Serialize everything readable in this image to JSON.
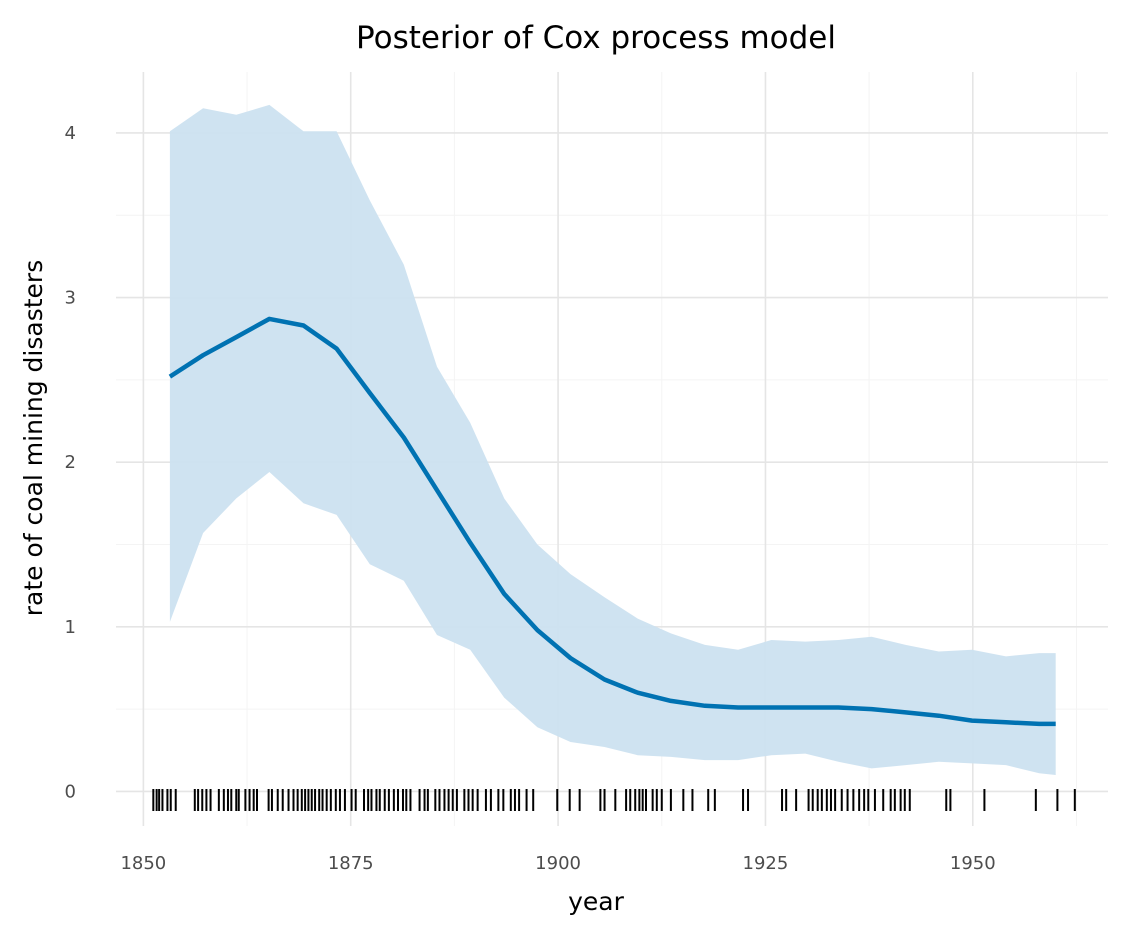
{
  "chart_data": {
    "type": "line",
    "title": "Posterior of Cox process model",
    "xlabel": "year",
    "ylabel": "rate of coal mining disasters",
    "xlim": [
      1846.7,
      1966.3
    ],
    "ylim": [
      -0.21,
      4.37
    ],
    "x_ticks": [
      "1850",
      "1875",
      "1900",
      "1925",
      "1950"
    ],
    "x_tick_values": [
      1850,
      1875,
      1900,
      1925,
      1950
    ],
    "y_ticks": [
      "0",
      "1",
      "2",
      "3",
      "4"
    ],
    "y_tick_values": [
      0,
      1,
      2,
      3,
      4
    ],
    "grid": true,
    "legend": "none",
    "colors": {
      "line": "#0072b2",
      "band": "#cce2f0",
      "rug": "#000000",
      "grid": "#e5e5e5",
      "grid_minor": "#f4f4f4"
    },
    "series": [
      {
        "x": [
          1853.2,
          1857.2,
          1861.2,
          1865.2,
          1869.3,
          1873.3,
          1877.3,
          1881.4,
          1885.4,
          1889.4,
          1893.5,
          1897.5,
          1901.5,
          1905.6,
          1909.6,
          1913.6,
          1917.7,
          1921.7,
          1925.7,
          1929.8,
          1933.8,
          1937.8,
          1941.9,
          1945.9,
          1949.9,
          1954.0,
          1958.0,
          1960.0
        ],
        "values": [
          2.52,
          2.65,
          2.76,
          2.87,
          2.83,
          2.69,
          2.42,
          2.15,
          1.83,
          1.51,
          1.2,
          0.98,
          0.81,
          0.68,
          0.6,
          0.55,
          0.52,
          0.51,
          0.51,
          0.51,
          0.51,
          0.5,
          0.48,
          0.46,
          0.43,
          0.42,
          0.41,
          0.41
        ],
        "lower": [
          1.03,
          1.57,
          1.78,
          1.94,
          1.75,
          1.68,
          1.38,
          1.28,
          0.95,
          0.86,
          0.57,
          0.39,
          0.3,
          0.27,
          0.22,
          0.21,
          0.19,
          0.19,
          0.22,
          0.23,
          0.18,
          0.14,
          0.16,
          0.18,
          0.17,
          0.16,
          0.11,
          0.1
        ],
        "upper": [
          4.01,
          4.15,
          4.11,
          4.17,
          4.01,
          4.01,
          3.59,
          3.2,
          2.58,
          2.24,
          1.78,
          1.5,
          1.32,
          1.18,
          1.05,
          0.96,
          0.89,
          0.86,
          0.92,
          0.91,
          0.92,
          0.94,
          0.89,
          0.85,
          0.86,
          0.82,
          0.84,
          0.84
        ]
      }
    ],
    "rug": [
      1851.2,
      1851.6,
      1851.9,
      1852.3,
      1852.9,
      1853.3,
      1853.9,
      1856.2,
      1856.6,
      1857.1,
      1857.6,
      1858.1,
      1859.1,
      1859.7,
      1860.2,
      1860.6,
      1861.2,
      1861.5,
      1862.3,
      1862.8,
      1863.3,
      1863.7,
      1865.1,
      1865.5,
      1866.2,
      1866.8,
      1867.5,
      1868.1,
      1868.6,
      1869.1,
      1869.5,
      1869.9,
      1870.3,
      1870.7,
      1871.2,
      1871.6,
      1872.1,
      1872.6,
      1873.2,
      1873.7,
      1874.3,
      1875.1,
      1875.6,
      1876.6,
      1877.1,
      1877.5,
      1878.1,
      1878.5,
      1879.1,
      1879.6,
      1880.2,
      1880.7,
      1881.3,
      1881.7,
      1882.2,
      1883.3,
      1883.9,
      1884.3,
      1885.2,
      1885.7,
      1886.3,
      1886.8,
      1887.3,
      1887.8,
      1888.7,
      1889.2,
      1889.7,
      1890.3,
      1891.3,
      1891.9,
      1892.8,
      1893.4,
      1894.3,
      1894.8,
      1895.3,
      1896.2,
      1897.0,
      1899.9,
      1901.4,
      1902.6,
      1905.1,
      1905.6,
      1906.9,
      1908.2,
      1908.7,
      1909.3,
      1909.8,
      1910.2,
      1910.6,
      1911.4,
      1911.9,
      1912.5,
      1913.6,
      1915.1,
      1916.2,
      1918.1,
      1918.9,
      1922.3,
      1922.9,
      1927.0,
      1927.5,
      1928.7,
      1930.2,
      1930.7,
      1931.3,
      1931.8,
      1932.4,
      1932.9,
      1933.4,
      1934.2,
      1934.9,
      1935.6,
      1936.3,
      1936.9,
      1937.4,
      1938.2,
      1939.2,
      1940.1,
      1940.6,
      1941.3,
      1941.8,
      1942.4,
      1946.8,
      1947.3,
      1951.4,
      1957.6,
      1960.2,
      1962.3
    ]
  }
}
